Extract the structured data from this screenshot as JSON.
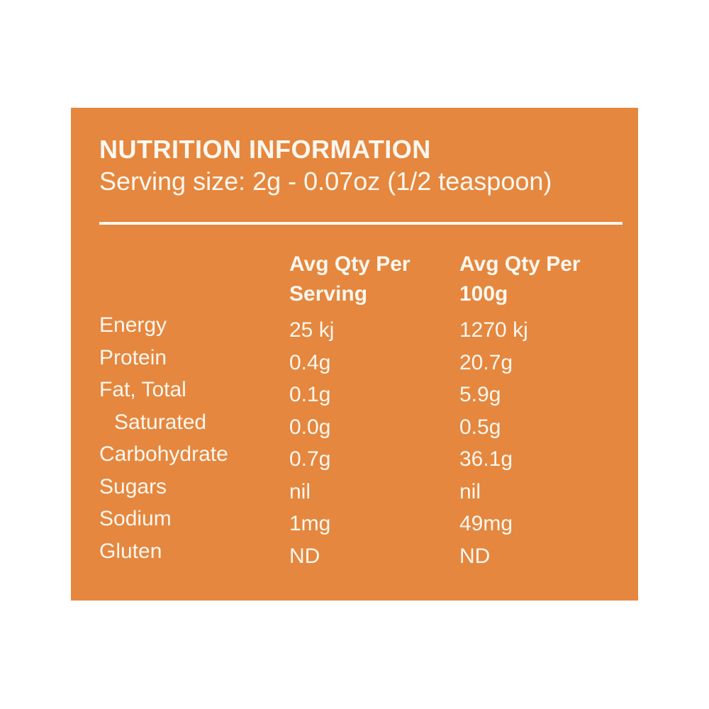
{
  "page": {
    "background_color": "#FFFFFF"
  },
  "panel": {
    "background_color": "#E5873E",
    "text_color": "#FBF7F0",
    "title": "NUTRITION INFORMATION",
    "serving_size": "Serving size: 2g - 0.07oz (1/2 teaspoon)"
  },
  "table": {
    "columns": [
      {
        "line1": "Avg Qty Per",
        "line2": "Serving"
      },
      {
        "line1": "Avg Qty Per",
        "line2": "100g"
      }
    ],
    "rows": [
      {
        "label": "Energy",
        "per_serving": "25 kj",
        "per_100g": "1270 kj"
      },
      {
        "label": "Protein",
        "per_serving": "0.4g",
        "per_100g": "20.7g"
      },
      {
        "label": "Fat, Total",
        "per_serving": "0.1g",
        "per_100g": "5.9g"
      },
      {
        "label": "Saturated",
        "per_serving": "0.0g",
        "per_100g": "0.5g"
      },
      {
        "label": "Carbohydrate",
        "per_serving": "0.7g",
        "per_100g": "36.1g"
      },
      {
        "label": "Sugars",
        "per_serving": "nil",
        "per_100g": "nil"
      },
      {
        "label": "Sodium",
        "per_serving": "1mg",
        "per_100g": "49mg"
      },
      {
        "label": "Gluten",
        "per_serving": "ND",
        "per_100g": "ND"
      }
    ]
  }
}
